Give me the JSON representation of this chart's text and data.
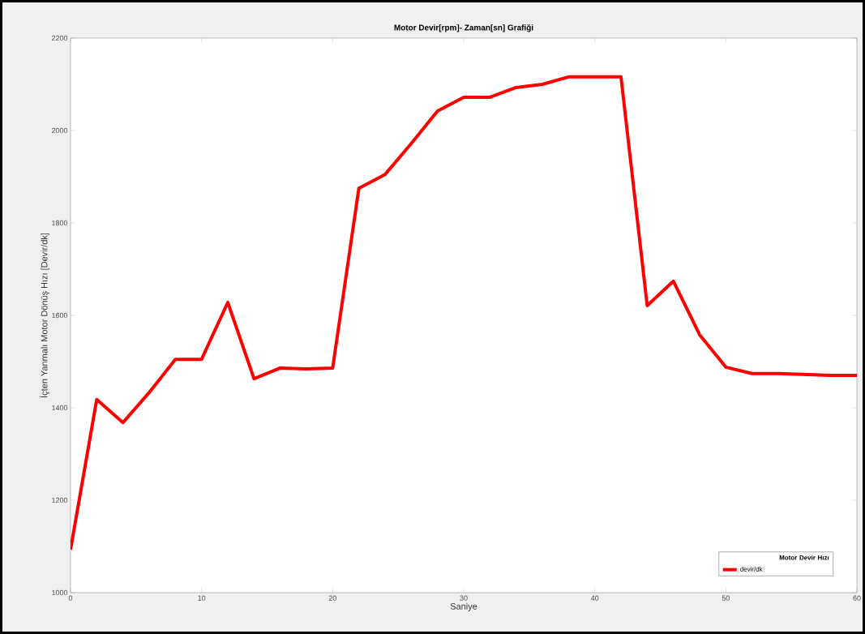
{
  "chart_data": {
    "type": "line",
    "title": "Motor Devir[rpm]- Zaman[sn] Grafiği",
    "xlabel": "Saniye",
    "ylabel": "İçten Yanmalı Motor Dönüş Hızı [Devir/dk]",
    "legend_title": "Motor Devir Hızı",
    "x": [
      0,
      2,
      4,
      6,
      8,
      10,
      12,
      14,
      16,
      18,
      20,
      22,
      24,
      26,
      28,
      30,
      32,
      34,
      36,
      38,
      40,
      42,
      44,
      46,
      48,
      50,
      52,
      54,
      56,
      58,
      60
    ],
    "series": [
      {
        "name": "devir/dk",
        "color": "#ff0000",
        "values": [
          1093,
          1418,
          1368,
          1433,
          1505,
          1505,
          1628,
          1463,
          1486,
          1484,
          1486,
          1875,
          1905,
          1972,
          2042,
          2072,
          2072,
          2093,
          2100,
          2116,
          2116,
          2116,
          1621,
          1674,
          1558,
          1488,
          1474,
          1474,
          1472,
          1470,
          1470
        ]
      }
    ],
    "xlim": [
      0,
      60
    ],
    "ylim": [
      1000,
      2200
    ],
    "xticks": [
      0,
      10,
      20,
      30,
      40,
      50,
      60
    ],
    "yticks": [
      1000,
      1200,
      1400,
      1600,
      1800,
      2000,
      2200
    ],
    "grid": false,
    "legend": "bottom right",
    "marker": "none",
    "line_style": "solid"
  }
}
